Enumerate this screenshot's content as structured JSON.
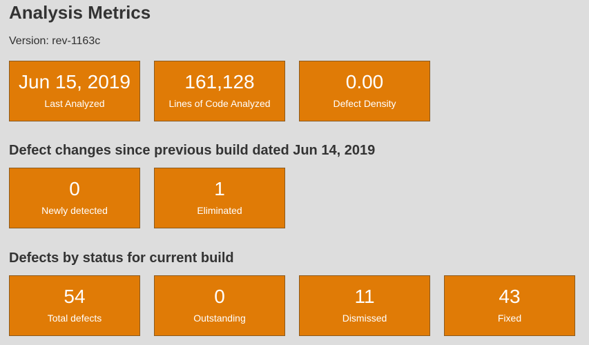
{
  "header": {
    "title": "Analysis Metrics",
    "version_label": "Version: rev-1163c"
  },
  "summary": [
    {
      "value": "Jun 15, 2019",
      "label": "Last Analyzed"
    },
    {
      "value": "161,128",
      "label": "Lines of Code Analyzed"
    },
    {
      "value": "0.00",
      "label": "Defect Density"
    }
  ],
  "changes": {
    "heading": "Defect changes since previous build dated Jun 14, 2019",
    "tiles": [
      {
        "value": "0",
        "label": "Newly detected"
      },
      {
        "value": "1",
        "label": "Eliminated"
      }
    ]
  },
  "status": {
    "heading": "Defects by status for current build",
    "tiles": [
      {
        "value": "54",
        "label": "Total defects"
      },
      {
        "value": "0",
        "label": "Outstanding"
      },
      {
        "value": "11",
        "label": "Dismissed"
      },
      {
        "value": "43",
        "label": "Fixed"
      }
    ]
  },
  "colors": {
    "tile_background": "#e07b06",
    "page_background": "#dddddd"
  }
}
